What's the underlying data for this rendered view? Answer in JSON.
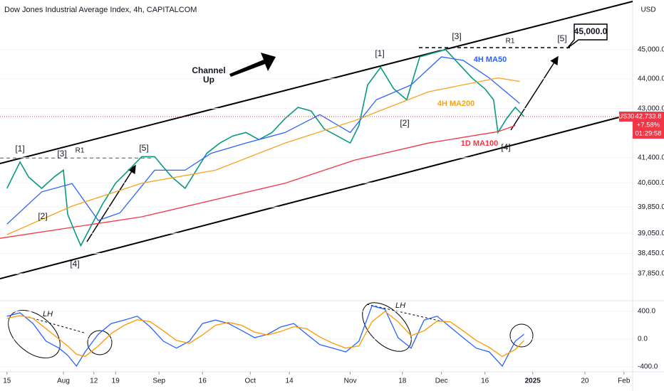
{
  "chart_data": [
    {
      "type": "line",
      "title": "Dow Jones Industrial Average Index, 4h, CAPITALCOM",
      "currency": "USD",
      "log_scale": true,
      "xlim": [
        -1.6,
        144
      ],
      "xticks": [
        {
          "value": 0,
          "label": "15"
        },
        {
          "value": 13,
          "label": "Aug"
        },
        {
          "value": 20,
          "label": "12"
        },
        {
          "value": 25,
          "label": "19"
        },
        {
          "value": 35,
          "label": "Sep"
        },
        {
          "value": 45,
          "label": "16"
        },
        {
          "value": 56,
          "label": "Oct"
        },
        {
          "value": 65,
          "label": "14"
        },
        {
          "value": 79,
          "label": "Nov"
        },
        {
          "value": 91,
          "label": "18"
        },
        {
          "value": 100,
          "label": "Dec"
        },
        {
          "value": 110,
          "label": "16"
        },
        {
          "value": 121,
          "label": "2025"
        },
        {
          "value": 133,
          "label": "20"
        },
        {
          "value": 142,
          "label": "Feb"
        }
      ],
      "ylim": [
        37130,
        46760
      ],
      "yticks": [
        {
          "value": 45000,
          "label": "45,000.0"
        },
        {
          "value": 44000,
          "label": "44,000.0"
        },
        {
          "value": 43000,
          "label": "43,000.0"
        },
        {
          "value": 41400,
          "label": "41,400.0"
        },
        {
          "value": 40600,
          "label": "40,600.0"
        },
        {
          "value": 39850,
          "label": "39,850.0"
        },
        {
          "value": 39050,
          "label": "39,050.0"
        },
        {
          "value": 38450,
          "label": "38,450.0"
        },
        {
          "value": 37850,
          "label": "37,850.0"
        }
      ],
      "last_price_label": [
        "42,733.8",
        "+7.58%",
        "01:29:58"
      ],
      "annotations": [
        "[1]",
        "[3]",
        "R1",
        "[5]",
        "[2]",
        "[4]",
        "Channel",
        "Up",
        "[1]",
        "[3]",
        "R1",
        "[5]",
        "45,000.0",
        "[2]",
        "[4]"
      ],
      "series": [
        {
          "name": "US30",
          "color": "#089981",
          "x": [
            0,
            3,
            5,
            8,
            11,
            13,
            14,
            16,
            17,
            19,
            22,
            25,
            28,
            31,
            34,
            36,
            38,
            41,
            43,
            46,
            49,
            52,
            55,
            58,
            61,
            64,
            67,
            70,
            73,
            76,
            79,
            81,
            83,
            86,
            89,
            92,
            95,
            98,
            101,
            104,
            107,
            110,
            112,
            113,
            115,
            117,
            119
          ],
          "values": [
            40430,
            41260,
            40780,
            40430,
            40800,
            41000,
            39620,
            38980,
            38680,
            39180,
            39940,
            40590,
            41000,
            41430,
            41430,
            41100,
            40780,
            40430,
            40870,
            41540,
            41870,
            42100,
            42210,
            41980,
            42210,
            42670,
            43040,
            42920,
            42330,
            42100,
            41870,
            42440,
            43790,
            44390,
            43660,
            43290,
            44750,
            44880,
            45000,
            44510,
            44030,
            43660,
            43290,
            42210,
            42670,
            43040,
            42733.8
          ]
        },
        {
          "name": "4H MA50",
          "color": "#2962ff",
          "x": [
            0,
            8,
            15,
            21,
            26,
            34,
            41,
            47,
            55,
            64,
            72,
            79,
            85,
            93,
            100,
            105,
            111,
            118
          ],
          "values": [
            39330,
            40320,
            40580,
            39440,
            39670,
            41000,
            41000,
            41540,
            41870,
            42210,
            42800,
            42210,
            43290,
            43790,
            44750,
            44630,
            44030,
            43170
          ]
        },
        {
          "name": "4H MA200",
          "color": "#f7a21b",
          "x": [
            0,
            15,
            31,
            48,
            64,
            80,
            97,
            113,
            118
          ],
          "values": [
            39010,
            39880,
            40590,
            41000,
            41870,
            42600,
            43560,
            44030,
            43910
          ]
        },
        {
          "name": "1D MA100",
          "color": "#f23645",
          "x": [
            -1.6,
            31,
            64,
            80,
            97,
            113,
            117
          ],
          "values": [
            38900,
            39550,
            40590,
            41320,
            41870,
            42240,
            42440
          ]
        }
      ]
    },
    {
      "type": "line",
      "annotations": [
        "LH",
        "LH"
      ],
      "xlim": [
        -1.6,
        144
      ],
      "ylim": [
        -472,
        554
      ],
      "yticks": [
        {
          "value": 400,
          "label": "400.0"
        },
        {
          "value": 0,
          "label": "0.0"
        },
        {
          "value": -400,
          "label": "-400.0"
        }
      ],
      "series": [
        {
          "color": "#2962ff",
          "x": [
            0,
            3,
            6,
            9,
            12,
            14,
            16,
            18,
            21,
            24,
            27,
            30,
            33,
            36,
            39,
            42,
            45,
            48,
            51,
            54,
            57,
            60,
            63,
            66,
            69,
            72,
            75,
            78,
            81,
            84,
            87,
            90,
            93,
            96,
            99,
            102,
            105,
            108,
            111,
            114,
            117,
            119
          ],
          "values": [
            330,
            380,
            225,
            -30,
            -130,
            -235,
            -390,
            -185,
            70,
            225,
            275,
            330,
            175,
            -30,
            -130,
            -30,
            225,
            275,
            225,
            125,
            20,
            70,
            175,
            225,
            70,
            -80,
            -130,
            -185,
            -30,
            480,
            430,
            20,
            -130,
            275,
            330,
            175,
            20,
            -130,
            -185,
            -390,
            -30,
            70
          ]
        },
        {
          "color": "#ff9800",
          "x": [
            0,
            3,
            6,
            9,
            12,
            14,
            16,
            18,
            21,
            24,
            27,
            30,
            33,
            36,
            39,
            42,
            45,
            48,
            51,
            54,
            57,
            60,
            63,
            66,
            69,
            72,
            75,
            78,
            81,
            84,
            87,
            90,
            93,
            96,
            99,
            102,
            105,
            108,
            111,
            114,
            117,
            119
          ],
          "values": [
            300,
            340,
            300,
            150,
            0,
            -100,
            -220,
            -250,
            -100,
            80,
            200,
            280,
            250,
            120,
            -20,
            -60,
            60,
            200,
            240,
            200,
            100,
            60,
            110,
            180,
            150,
            30,
            -60,
            -130,
            -100,
            250,
            400,
            250,
            50,
            120,
            260,
            250,
            120,
            -20,
            -120,
            -250,
            -150,
            -20
          ]
        }
      ]
    }
  ]
}
